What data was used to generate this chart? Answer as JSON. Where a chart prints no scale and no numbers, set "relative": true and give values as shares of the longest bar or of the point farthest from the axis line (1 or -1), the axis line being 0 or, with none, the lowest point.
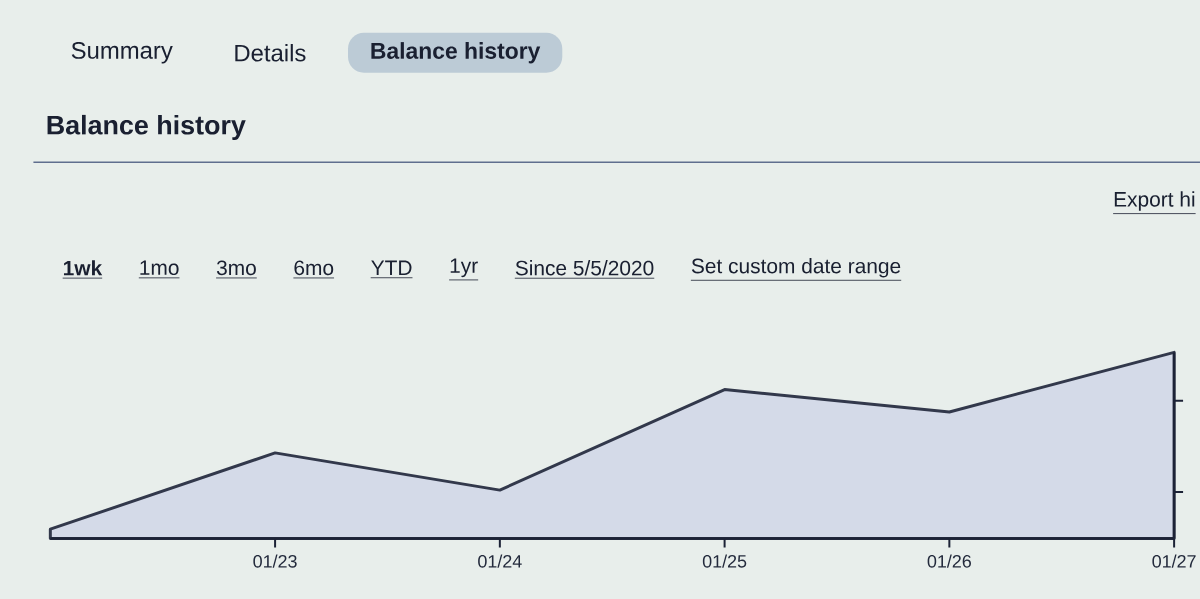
{
  "chart_data": {
    "type": "area",
    "title": "Balance history",
    "categories": [
      null,
      "01/23",
      "01/24",
      "01/25",
      "01/26",
      "01/27"
    ],
    "values": [
      0.05,
      0.46,
      0.26,
      0.8,
      0.68,
      1
    ],
    "relative": true,
    "color": "#d4dae8",
    "annotations": [
      "Summary",
      "Details",
      "Balance history",
      "Export hi",
      "1wk",
      "1mo",
      "3mo",
      "6mo",
      "YTD",
      "1yr",
      "Since 5/5/2020",
      "Set custom date range"
    ]
  }
}
